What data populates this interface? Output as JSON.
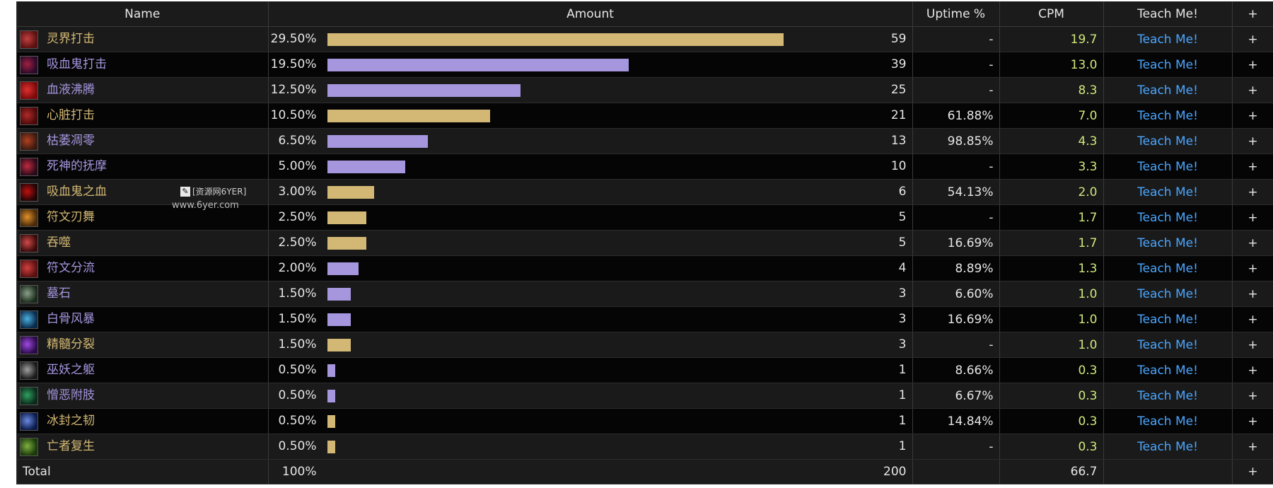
{
  "colors": {
    "gold": "#d2b874",
    "purple": "#a596de",
    "cpm_green": "#cfe97a",
    "link_blue": "#4aa6ff"
  },
  "header": {
    "name": "Name",
    "amount": "Amount",
    "uptime": "Uptime %",
    "cpm": "CPM",
    "teach": "Teach Me!",
    "plus": "+"
  },
  "rows": [
    {
      "name": "灵界打击",
      "color": "gold",
      "icon": "blood-strike-icon",
      "iconColors": [
        "#5a1010",
        "#c44040"
      ],
      "percent": "29.50%",
      "amount": "59",
      "fraction": 1.0,
      "uptime": "-",
      "cpm": "19.7",
      "teach": "Teach Me!",
      "plus": "+"
    },
    {
      "name": "吸血鬼打击",
      "color": "purple",
      "icon": "vampiric-strike-icon",
      "iconColors": [
        "#2a0a2a",
        "#a02040"
      ],
      "percent": "19.50%",
      "amount": "39",
      "fraction": 0.661,
      "uptime": "-",
      "cpm": "13.0",
      "teach": "Teach Me!",
      "plus": "+"
    },
    {
      "name": "血液沸腾",
      "color": "purple",
      "icon": "blood-boil-icon",
      "iconColors": [
        "#7a0a0a",
        "#e03030"
      ],
      "percent": "12.50%",
      "amount": "25",
      "fraction": 0.424,
      "uptime": "-",
      "cpm": "8.3",
      "teach": "Teach Me!",
      "plus": "+"
    },
    {
      "name": "心脏打击",
      "color": "gold",
      "icon": "heart-strike-icon",
      "iconColors": [
        "#4a0a0a",
        "#b02a2a"
      ],
      "percent": "10.50%",
      "amount": "21",
      "fraction": 0.356,
      "uptime": "61.88%",
      "cpm": "7.0",
      "teach": "Teach Me!",
      "plus": "+"
    },
    {
      "name": "枯萎凋零",
      "color": "purple",
      "icon": "death-and-decay-icon",
      "iconColors": [
        "#3a1a10",
        "#b04020"
      ],
      "percent": "6.50%",
      "amount": "13",
      "fraction": 0.22,
      "uptime": "98.85%",
      "cpm": "4.3",
      "teach": "Teach Me!",
      "plus": "+"
    },
    {
      "name": "死神的抚摩",
      "color": "purple",
      "icon": "deaths-caress-icon",
      "iconColors": [
        "#2a0a1a",
        "#c02a40"
      ],
      "percent": "5.00%",
      "amount": "10",
      "fraction": 0.17,
      "uptime": "-",
      "cpm": "3.3",
      "teach": "Teach Me!",
      "plus": "+"
    },
    {
      "name": "吸血鬼之血",
      "color": "gold",
      "icon": "vampiric-blood-icon",
      "iconColors": [
        "#200404",
        "#c01010"
      ],
      "percent": "3.00%",
      "amount": "6",
      "fraction": 0.102,
      "uptime": "54.13%",
      "cpm": "2.0",
      "teach": "Teach Me!",
      "plus": "+"
    },
    {
      "name": "符文刃舞",
      "color": "gold",
      "icon": "rune-weapon-icon",
      "iconColors": [
        "#4a2a0a",
        "#e0902a"
      ],
      "percent": "2.50%",
      "amount": "5",
      "fraction": 0.085,
      "uptime": "-",
      "cpm": "1.7",
      "teach": "Teach Me!",
      "plus": "+"
    },
    {
      "name": "吞噬",
      "color": "gold",
      "icon": "consumption-icon",
      "iconColors": [
        "#3a0a0a",
        "#d04a4a"
      ],
      "percent": "2.50%",
      "amount": "5",
      "fraction": 0.085,
      "uptime": "16.69%",
      "cpm": "1.7",
      "teach": "Teach Me!",
      "plus": "+"
    },
    {
      "name": "符文分流",
      "color": "purple",
      "icon": "rune-tap-icon",
      "iconColors": [
        "#5a1010",
        "#d04040"
      ],
      "percent": "2.00%",
      "amount": "4",
      "fraction": 0.068,
      "uptime": "8.89%",
      "cpm": "1.3",
      "teach": "Teach Me!",
      "plus": "+"
    },
    {
      "name": "墓石",
      "color": "purple",
      "icon": "tombstone-icon",
      "iconColors": [
        "#1a2a1a",
        "#8aa08a"
      ],
      "percent": "1.50%",
      "amount": "3",
      "fraction": 0.051,
      "uptime": "6.60%",
      "cpm": "1.0",
      "teach": "Teach Me!",
      "plus": "+"
    },
    {
      "name": "白骨风暴",
      "color": "purple",
      "icon": "bonestorm-icon",
      "iconColors": [
        "#0a2a4a",
        "#4ab0e0"
      ],
      "percent": "1.50%",
      "amount": "3",
      "fraction": 0.051,
      "uptime": "16.69%",
      "cpm": "1.0",
      "teach": "Teach Me!",
      "plus": "+"
    },
    {
      "name": "精髓分裂",
      "color": "gold",
      "icon": "marrowrend-icon",
      "iconColors": [
        "#2a0a4a",
        "#a04ae0"
      ],
      "percent": "1.50%",
      "amount": "3",
      "fraction": 0.051,
      "uptime": "-",
      "cpm": "1.0",
      "teach": "Teach Me!",
      "plus": "+"
    },
    {
      "name": "巫妖之躯",
      "color": "purple",
      "icon": "lichborne-icon",
      "iconColors": [
        "#1a1a1a",
        "#a0a0a0"
      ],
      "percent": "0.50%",
      "amount": "1",
      "fraction": 0.017,
      "uptime": "8.66%",
      "cpm": "0.3",
      "teach": "Teach Me!",
      "plus": "+"
    },
    {
      "name": "憎恶附肢",
      "color": "purple",
      "icon": "abomination-limb-icon",
      "iconColors": [
        "#0a2a1a",
        "#30a060"
      ],
      "percent": "0.50%",
      "amount": "1",
      "fraction": 0.017,
      "uptime": "6.67%",
      "cpm": "0.3",
      "teach": "Teach Me!",
      "plus": "+"
    },
    {
      "name": "冰封之韧",
      "color": "gold",
      "icon": "icebound-fortitude-icon",
      "iconColors": [
        "#0a1a4a",
        "#6a8ae0"
      ],
      "percent": "0.50%",
      "amount": "1",
      "fraction": 0.017,
      "uptime": "14.84%",
      "cpm": "0.3",
      "teach": "Teach Me!",
      "plus": "+"
    },
    {
      "name": "亡者复生",
      "color": "gold",
      "icon": "raise-dead-icon",
      "iconColors": [
        "#1a3a0a",
        "#80b040"
      ],
      "percent": "0.50%",
      "amount": "1",
      "fraction": 0.017,
      "uptime": "-",
      "cpm": "0.3",
      "teach": "Teach Me!",
      "plus": "+"
    }
  ],
  "total": {
    "label": "Total",
    "percent": "100%",
    "amount": "200",
    "cpm": "66.7",
    "plus": "+"
  },
  "watermark": {
    "line1": "[资源网6YER]",
    "line2": "www.6yer.com"
  }
}
